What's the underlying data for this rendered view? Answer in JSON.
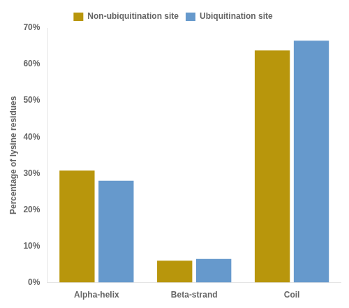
{
  "chart_data": {
    "type": "bar",
    "categories": [
      "Alpha-helix",
      "Beta-strand",
      "Coil"
    ],
    "series": [
      {
        "name": "Non-ubiquitination site",
        "color": "#B8960C",
        "values": [
          0.308,
          0.06,
          0.638
        ]
      },
      {
        "name": "Ubiquitination site",
        "color": "#6699CC",
        "values": [
          0.28,
          0.065,
          0.665
        ]
      }
    ],
    "ylabel": "Percentage of lysine residues",
    "ylim": [
      0,
      0.7
    ],
    "yticks": [
      {
        "value": 0.0,
        "label": "0%"
      },
      {
        "value": 0.1,
        "label": "10%"
      },
      {
        "value": 0.2,
        "label": "20%"
      },
      {
        "value": 0.3,
        "label": "30%"
      },
      {
        "value": 0.4,
        "label": "40%"
      },
      {
        "value": 0.5,
        "label": "50%"
      },
      {
        "value": 0.6,
        "label": "60%"
      },
      {
        "value": 0.7,
        "label": "70%"
      }
    ],
    "grid": false,
    "legend": "top"
  }
}
